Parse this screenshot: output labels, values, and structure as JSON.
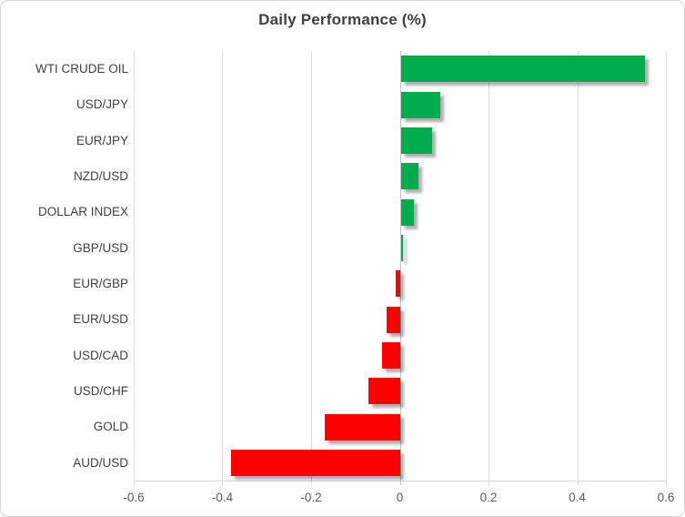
{
  "chart_data": {
    "type": "bar",
    "orientation": "horizontal",
    "title": "Daily Performance (%)",
    "categories": [
      "WTI CRUDE OIL",
      "USD/JPY",
      "EUR/JPY",
      "NZD/USD",
      "DOLLAR INDEX",
      "GBP/USD",
      "EUR/GBP",
      "EUR/USD",
      "USD/CAD",
      "USD/CHF",
      "GOLD",
      "AUD/USD"
    ],
    "values": [
      0.55,
      0.09,
      0.07,
      0.04,
      0.03,
      0.005,
      -0.01,
      -0.03,
      -0.04,
      -0.07,
      -0.17,
      -0.38
    ],
    "xlabel": "",
    "ylabel": "",
    "xlim": [
      -0.6,
      0.6
    ],
    "xticks": [
      -0.6,
      -0.4,
      -0.2,
      0,
      0.2,
      0.4,
      0.6
    ],
    "xtick_labels": [
      "-0.6",
      "-0.4",
      "-0.2",
      "0",
      "0.2",
      "0.4",
      "0.6"
    ],
    "grid": true,
    "legend": false,
    "positive_color": "#00AC4E",
    "negative_color": "#FF0000",
    "gridline_color": "#D9D9D9",
    "title_color": "#3F3F3F",
    "label_color": "#404040",
    "tick_color": "#595959"
  }
}
